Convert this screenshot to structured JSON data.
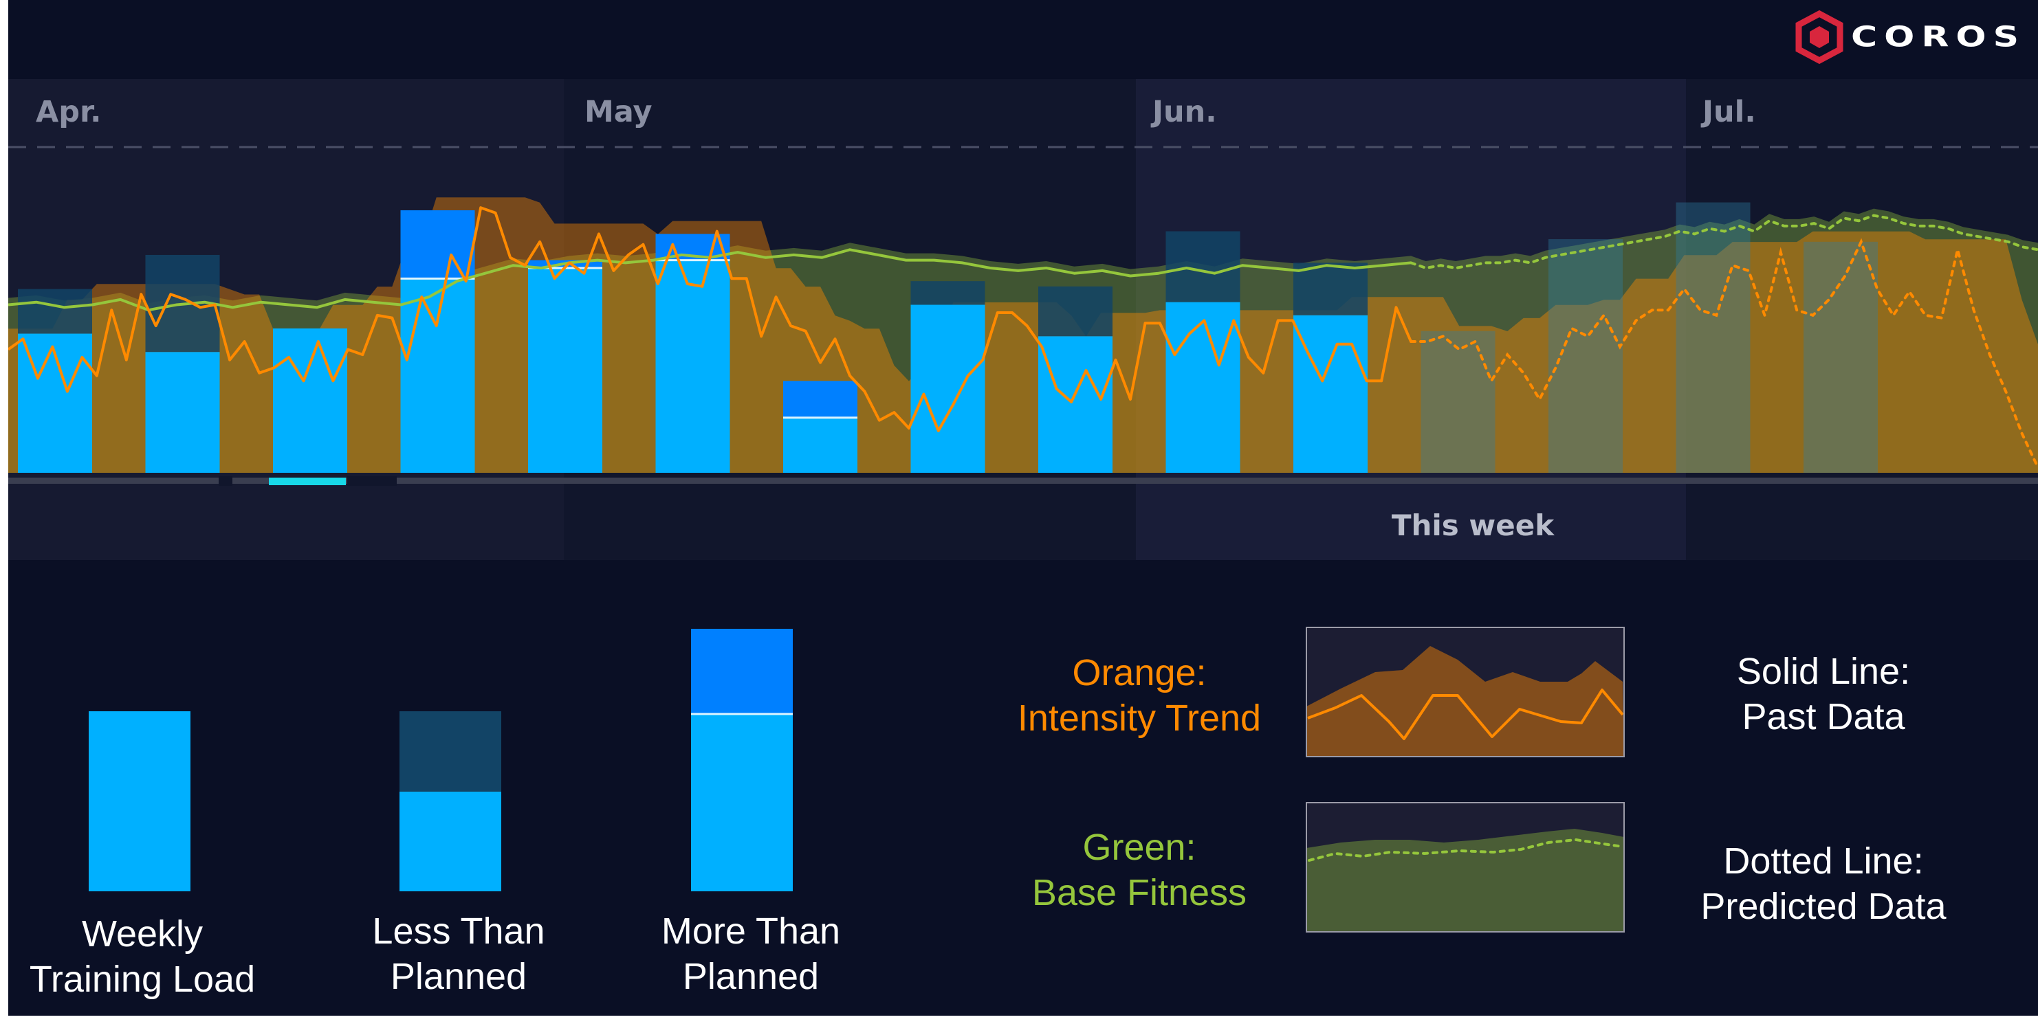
{
  "brand": {
    "name": "COROS",
    "accent": "#d8263d"
  },
  "colors": {
    "bar_completed": "#00b0ff",
    "bar_over": "#0080ff",
    "bar_planned_remaining": "#124466",
    "intensity_trend": "#ff8a00",
    "base_fitness": "#95c63c"
  },
  "chart_data": {
    "type": "bar",
    "month_labels": [
      "Apr.",
      "May",
      "Jun.",
      "Jul."
    ],
    "annotations": {
      "current_week": "This week"
    },
    "weeks": [
      {
        "planned": 0.7,
        "actual": 0.53,
        "status": "past"
      },
      {
        "planned": 0.83,
        "actual": 0.46,
        "status": "past"
      },
      {
        "planned": 0.55,
        "actual": 0.55,
        "status": "past"
      },
      {
        "planned": 0.74,
        "actual": 1.0,
        "status": "past"
      },
      {
        "planned": 0.78,
        "actual": 0.81,
        "status": "past"
      },
      {
        "planned": 0.81,
        "actual": 0.91,
        "status": "past"
      },
      {
        "planned": 0.21,
        "actual": 0.35,
        "status": "past"
      },
      {
        "planned": 0.73,
        "actual": 0.64,
        "status": "past"
      },
      {
        "planned": 0.71,
        "actual": 0.52,
        "status": "past"
      },
      {
        "planned": 0.92,
        "actual": 0.65,
        "status": "past"
      },
      {
        "planned": 0.8,
        "actual": 0.6,
        "status": "current"
      },
      {
        "planned": 0.54,
        "actual": 0,
        "status": "future"
      },
      {
        "planned": 0.89,
        "actual": 0,
        "status": "future"
      },
      {
        "planned": 1.03,
        "actual": 0,
        "status": "future"
      },
      {
        "planned": 0.88,
        "actual": 0,
        "status": "future"
      }
    ],
    "series": [
      {
        "name": "Intensity Trend",
        "values": [
          0.47,
          0.51,
          0.36,
          0.48,
          0.31,
          0.44,
          0.37,
          0.62,
          0.43,
          0.68,
          0.56,
          0.68,
          0.66,
          0.63,
          0.64,
          0.43,
          0.5,
          0.38,
          0.4,
          0.44,
          0.35,
          0.5,
          0.35,
          0.47,
          0.45,
          0.6,
          0.59,
          0.43,
          0.67,
          0.56,
          0.83,
          0.73,
          1.01,
          0.99,
          0.82,
          0.79,
          0.88,
          0.74,
          0.8,
          0.76,
          0.91,
          0.77,
          0.83,
          0.87,
          0.72,
          0.87,
          0.72,
          0.71,
          0.92,
          0.74,
          0.74,
          0.52,
          0.67,
          0.56,
          0.54,
          0.42,
          0.51,
          0.37,
          0.31,
          0.2,
          0.23,
          0.17,
          0.3,
          0.16,
          0.26,
          0.37,
          0.43,
          0.61,
          0.61,
          0.56,
          0.48,
          0.32,
          0.27,
          0.39,
          0.28,
          0.43,
          0.28,
          0.57,
          0.57,
          0.45,
          0.53,
          0.58,
          0.41,
          0.58,
          0.44,
          0.38,
          0.58,
          0.58,
          0.46,
          0.35,
          0.49,
          0.49,
          0.35,
          0.35,
          0.63,
          0.5
        ],
        "predicted_values": [
          0.5,
          0.52,
          0.47,
          0.5,
          0.35,
          0.45,
          0.38,
          0.28,
          0.4,
          0.55,
          0.52,
          0.6,
          0.48,
          0.58,
          0.62,
          0.62,
          0.7,
          0.62,
          0.6,
          0.79,
          0.77,
          0.6,
          0.84,
          0.62,
          0.6,
          0.66,
          0.75,
          0.88,
          0.7,
          0.6,
          0.69,
          0.6,
          0.59,
          0.85,
          0.62,
          0.45,
          0.31,
          0.15,
          0.02
        ]
      },
      {
        "name": "Base Fitness",
        "values": [
          0.64,
          0.65,
          0.63,
          0.64,
          0.66,
          0.62,
          0.64,
          0.65,
          0.63,
          0.65,
          0.64,
          0.63,
          0.66,
          0.65,
          0.64,
          0.67,
          0.73,
          0.76,
          0.79,
          0.78,
          0.8,
          0.81,
          0.8,
          0.81,
          0.83,
          0.82,
          0.84,
          0.82,
          0.83,
          0.82,
          0.85,
          0.83,
          0.81,
          0.81,
          0.8,
          0.78,
          0.77,
          0.78,
          0.76,
          0.77,
          0.75,
          0.76,
          0.78,
          0.76,
          0.79,
          0.78,
          0.77,
          0.79,
          0.78,
          0.79,
          0.8
        ],
        "predicted_values": [
          0.78,
          0.79,
          0.78,
          0.79,
          0.8,
          0.8,
          0.81,
          0.8,
          0.82,
          0.83,
          0.84,
          0.85,
          0.86,
          0.87,
          0.88,
          0.89,
          0.9,
          0.92,
          0.91,
          0.93,
          0.92,
          0.94,
          0.92,
          0.96,
          0.94,
          0.94,
          0.95,
          0.93,
          0.97,
          0.96,
          0.98,
          0.97,
          0.95,
          0.94,
          0.94,
          0.93,
          0.91,
          0.9,
          0.89,
          0.88,
          0.86,
          0.85
        ]
      }
    ]
  },
  "legend": {
    "bars": [
      {
        "line1": "Weekly",
        "line2": "Training Load"
      },
      {
        "line1": "Less Than",
        "line2": "Planned"
      },
      {
        "line1": "More Than",
        "line2": "Planned"
      }
    ],
    "lines": [
      {
        "title": "Orange:",
        "name": "Intensity Trend",
        "color": "#ff8a00"
      },
      {
        "title": "Green:",
        "name": "Base Fitness",
        "color": "#95c63c"
      }
    ],
    "styles": [
      {
        "line1": "Solid Line:",
        "line2": "Past Data"
      },
      {
        "line1": "Dotted Line:",
        "line2": "Predicted Data"
      }
    ]
  }
}
